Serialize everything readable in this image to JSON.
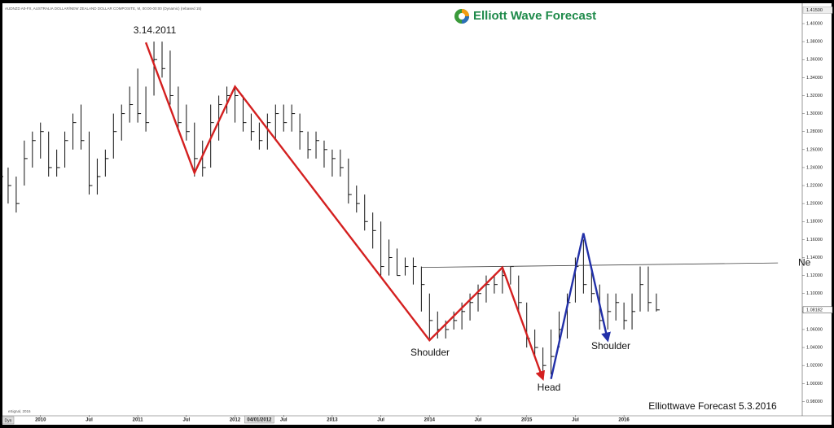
{
  "chart_data": {
    "type": "ohlc",
    "header": "AUDNZD A0-FX, AUSTRALIA DOLLAR/NEW ZEALAND DOLLAR COMPOSITE, M, 00:00-00:00 (Dynamic) (rebased 15)",
    "logo": "Elliott Wave Forecast",
    "watermark": "Elliottwave Forecast 5.3.2016",
    "credit": "eSignal, 2016",
    "mode": "Dyn",
    "color": "#111111",
    "x": [
      "2009-08",
      "2009-09",
      "2009-10",
      "2009-11",
      "2009-12",
      "2010-01",
      "2010-02",
      "2010-03",
      "2010-04",
      "2010-05",
      "2010-06",
      "2010-07",
      "2010-08",
      "2010-09",
      "2010-10",
      "2010-11",
      "2010-12",
      "2011-01",
      "2011-02",
      "2011-03",
      "2011-04",
      "2011-05",
      "2011-06",
      "2011-07",
      "2011-08",
      "2011-09",
      "2011-10",
      "2011-11",
      "2011-12",
      "2012-01",
      "2012-02",
      "2012-03",
      "2012-04",
      "2012-05",
      "2012-06",
      "2012-07",
      "2012-08",
      "2012-09",
      "2012-10",
      "2012-11",
      "2012-12",
      "2013-01",
      "2013-02",
      "2013-03",
      "2013-04",
      "2013-05",
      "2013-06",
      "2013-07",
      "2013-08",
      "2013-09",
      "2013-10",
      "2013-11",
      "2013-12",
      "2014-01",
      "2014-02",
      "2014-03",
      "2014-04",
      "2014-05",
      "2014-06",
      "2014-07",
      "2014-08",
      "2014-09",
      "2014-10",
      "2014-11",
      "2014-12",
      "2015-01",
      "2015-02",
      "2015-03",
      "2015-04",
      "2015-05",
      "2015-06",
      "2015-07",
      "2015-08",
      "2015-09",
      "2015-10",
      "2015-11",
      "2015-12",
      "2016-01",
      "2016-02",
      "2016-03",
      "2016-04",
      "2016-05"
    ],
    "high": [
      1.25,
      1.24,
      1.23,
      1.27,
      1.28,
      1.29,
      1.28,
      1.26,
      1.28,
      1.3,
      1.31,
      1.28,
      1.25,
      1.26,
      1.3,
      1.31,
      1.33,
      1.35,
      1.33,
      1.38,
      1.38,
      1.37,
      1.33,
      1.31,
      1.29,
      1.27,
      1.31,
      1.32,
      1.33,
      1.33,
      1.32,
      1.3,
      1.29,
      1.3,
      1.31,
      1.31,
      1.31,
      1.3,
      1.28,
      1.28,
      1.27,
      1.26,
      1.26,
      1.25,
      1.22,
      1.21,
      1.19,
      1.18,
      1.16,
      1.15,
      1.14,
      1.14,
      1.13,
      1.1,
      1.08,
      1.07,
      1.08,
      1.09,
      1.1,
      1.11,
      1.12,
      1.12,
      1.13,
      1.13,
      1.12,
      1.09,
      1.06,
      1.04,
      1.06,
      1.08,
      1.1,
      1.14,
      1.16,
      1.13,
      1.11,
      1.1,
      1.1,
      1.09,
      1.1,
      1.13,
      1.13,
      1.1
    ],
    "low": [
      1.21,
      1.2,
      1.19,
      1.22,
      1.24,
      1.25,
      1.23,
      1.23,
      1.24,
      1.26,
      1.26,
      1.21,
      1.21,
      1.23,
      1.25,
      1.27,
      1.29,
      1.29,
      1.28,
      1.32,
      1.34,
      1.31,
      1.28,
      1.27,
      1.23,
      1.23,
      1.24,
      1.27,
      1.3,
      1.29,
      1.28,
      1.27,
      1.26,
      1.26,
      1.27,
      1.28,
      1.28,
      1.26,
      1.25,
      1.25,
      1.24,
      1.23,
      1.23,
      1.2,
      1.19,
      1.17,
      1.15,
      1.12,
      1.12,
      1.12,
      1.12,
      1.11,
      1.08,
      1.05,
      1.05,
      1.05,
      1.06,
      1.06,
      1.07,
      1.08,
      1.09,
      1.1,
      1.1,
      1.11,
      1.08,
      1.04,
      1.03,
      1.01,
      1.01,
      1.04,
      1.05,
      1.09,
      1.1,
      1.09,
      1.06,
      1.06,
      1.07,
      1.06,
      1.06,
      1.08,
      1.08,
      1.08
    ],
    "close": [
      1.23,
      1.22,
      1.2,
      1.25,
      1.27,
      1.28,
      1.24,
      1.24,
      1.27,
      1.29,
      1.27,
      1.22,
      1.23,
      1.25,
      1.28,
      1.3,
      1.31,
      1.3,
      1.29,
      1.36,
      1.35,
      1.32,
      1.29,
      1.28,
      1.25,
      1.24,
      1.29,
      1.31,
      1.32,
      1.32,
      1.29,
      1.28,
      1.27,
      1.29,
      1.3,
      1.29,
      1.3,
      1.28,
      1.26,
      1.27,
      1.26,
      1.25,
      1.24,
      1.21,
      1.2,
      1.18,
      1.17,
      1.13,
      1.14,
      1.12,
      1.13,
      1.13,
      1.11,
      1.07,
      1.06,
      1.06,
      1.07,
      1.08,
      1.09,
      1.1,
      1.11,
      1.11,
      1.12,
      1.13,
      1.09,
      1.05,
      1.04,
      1.02,
      1.03,
      1.06,
      1.09,
      1.13,
      1.11,
      1.1,
      1.07,
      1.08,
      1.09,
      1.07,
      1.08,
      1.11,
      1.09,
      1.08182
    ],
    "last_price": 1.08182,
    "top_price": {
      "value": 1.415,
      "label": "1.41500"
    },
    "xlim": [
      "2009-08",
      "2017-11"
    ],
    "ylim": [
      0.965,
      1.419
    ],
    "xticks": [
      {
        "value": "2010-01",
        "label": "2010"
      },
      {
        "value": "2010-07",
        "label": "Jul"
      },
      {
        "value": "2011-01",
        "label": "2011"
      },
      {
        "value": "2011-07",
        "label": "Jul"
      },
      {
        "value": "2012-01",
        "label": "2012"
      },
      {
        "value": "2012-04",
        "label": "04/01/2012"
      },
      {
        "value": "2012-07",
        "label": "Jul"
      },
      {
        "value": "2013-01",
        "label": "2013"
      },
      {
        "value": "2013-07",
        "label": "Jul"
      },
      {
        "value": "2014-01",
        "label": "2014"
      },
      {
        "value": "2014-07",
        "label": "Jul"
      },
      {
        "value": "2015-01",
        "label": "2015"
      },
      {
        "value": "2015-07",
        "label": "Jul"
      },
      {
        "value": "2016-01",
        "label": "2016"
      }
    ],
    "yticks": [
      {
        "value": 0.98,
        "label": "0.98000"
      },
      {
        "value": 1.0,
        "label": "1.00000"
      },
      {
        "value": 1.02,
        "label": "1.02000"
      },
      {
        "value": 1.04,
        "label": "1.04000"
      },
      {
        "value": 1.06,
        "label": "1.06000"
      },
      {
        "value": 1.08,
        "label": "1.08000"
      },
      {
        "value": 1.1,
        "label": "1.10000"
      },
      {
        "value": 1.12,
        "label": "1.12000"
      },
      {
        "value": 1.14,
        "label": "1.14000"
      },
      {
        "value": 1.16,
        "label": "1.16000"
      },
      {
        "value": 1.18,
        "label": "1.18000"
      },
      {
        "value": 1.2,
        "label": "1.20000"
      },
      {
        "value": 1.22,
        "label": "1.22000"
      },
      {
        "value": 1.24,
        "label": "1.24000"
      },
      {
        "value": 1.26,
        "label": "1.26000"
      },
      {
        "value": 1.28,
        "label": "1.28000"
      },
      {
        "value": 1.3,
        "label": "1.30000"
      },
      {
        "value": 1.32,
        "label": "1.32000"
      },
      {
        "value": 1.34,
        "label": "1.34000"
      },
      {
        "value": 1.36,
        "label": "1.36000"
      },
      {
        "value": 1.38,
        "label": "1.38000"
      },
      {
        "value": 1.4,
        "label": "1.40000"
      }
    ],
    "waves": [
      {
        "color": "#d42020",
        "x": [
          "2011-02",
          "2011-08",
          "2012-01",
          "2014-01",
          "2014-10",
          "2015-03"
        ],
        "values": [
          1.379,
          1.234,
          1.33,
          1.048,
          1.129,
          1.005
        ]
      },
      {
        "color": "#2230a8",
        "x": [
          "2015-04",
          "2015-08",
          "2015-11"
        ],
        "values": [
          1.005,
          1.167,
          1.048
        ]
      }
    ],
    "neckline": {
      "color": "#444444",
      "label": "Ne",
      "x": [
        "2013-12",
        "2017-08"
      ],
      "values": [
        1.129,
        1.134
      ]
    },
    "annotations": {
      "peak": "3.14.2011",
      "left_shoulder": "Shoulder",
      "head": "Head",
      "right_shoulder": "Shoulder"
    }
  }
}
